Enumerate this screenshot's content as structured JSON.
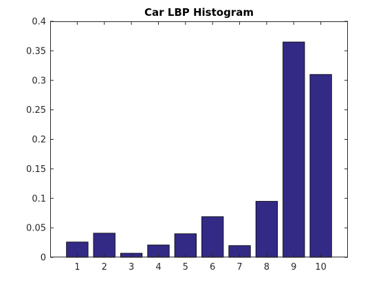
{
  "chart_data": {
    "type": "bar",
    "title": "Car LBP Histogram",
    "xlabel": "",
    "ylabel": "",
    "categories": [
      "1",
      "2",
      "3",
      "4",
      "5",
      "6",
      "7",
      "8",
      "9",
      "10"
    ],
    "values": [
      0.026,
      0.041,
      0.007,
      0.021,
      0.04,
      0.069,
      0.02,
      0.095,
      0.365,
      0.31
    ],
    "ylim": [
      0,
      0.4
    ],
    "xlim": [
      0,
      11
    ],
    "yticks": [
      "0",
      "0.05",
      "0.1",
      "0.15",
      "0.2",
      "0.25",
      "0.3",
      "0.35",
      "0.4"
    ],
    "ytick_values": [
      0,
      0.05,
      0.1,
      0.15,
      0.2,
      0.25,
      0.3,
      0.35,
      0.4
    ],
    "grid": false,
    "bar_color": "#332a85",
    "bar_edge_color": "#000000"
  }
}
